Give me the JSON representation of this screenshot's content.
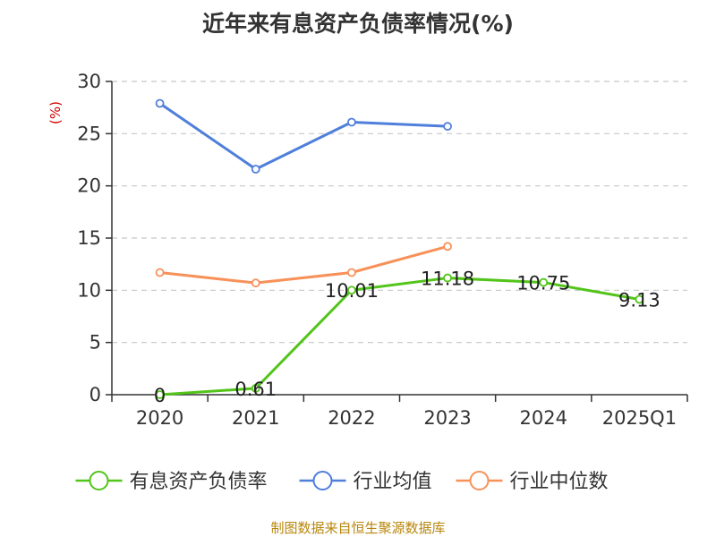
{
  "chart_data": {
    "type": "line",
    "title": "近年来有息资产负债率情况(%)",
    "ylabel": "(%)",
    "ylim": [
      0,
      30
    ],
    "yticks": [
      0,
      5,
      10,
      15,
      20,
      25,
      30
    ],
    "grid": true,
    "legend_placement": "bottom",
    "categories": [
      "2020",
      "2021",
      "2022",
      "2023",
      "2024",
      "2025Q1"
    ],
    "series": [
      {
        "name": "有息资产负债率",
        "color": "#52c41a",
        "values": [
          0,
          0.61,
          10.01,
          11.18,
          10.75,
          9.13
        ],
        "labels": [
          "0",
          "0.61",
          "10.01",
          "11.18",
          "10.75",
          "9.13"
        ]
      },
      {
        "name": "行业均值",
        "color": "#4f7fdb",
        "values": [
          27.9,
          21.6,
          26.1,
          25.7,
          null,
          null
        ]
      },
      {
        "name": "行业中位数",
        "color": "#f79159",
        "values": [
          11.7,
          10.7,
          11.7,
          14.2,
          null,
          null
        ]
      }
    ],
    "source": "制图数据来自恒生聚源数据库"
  }
}
